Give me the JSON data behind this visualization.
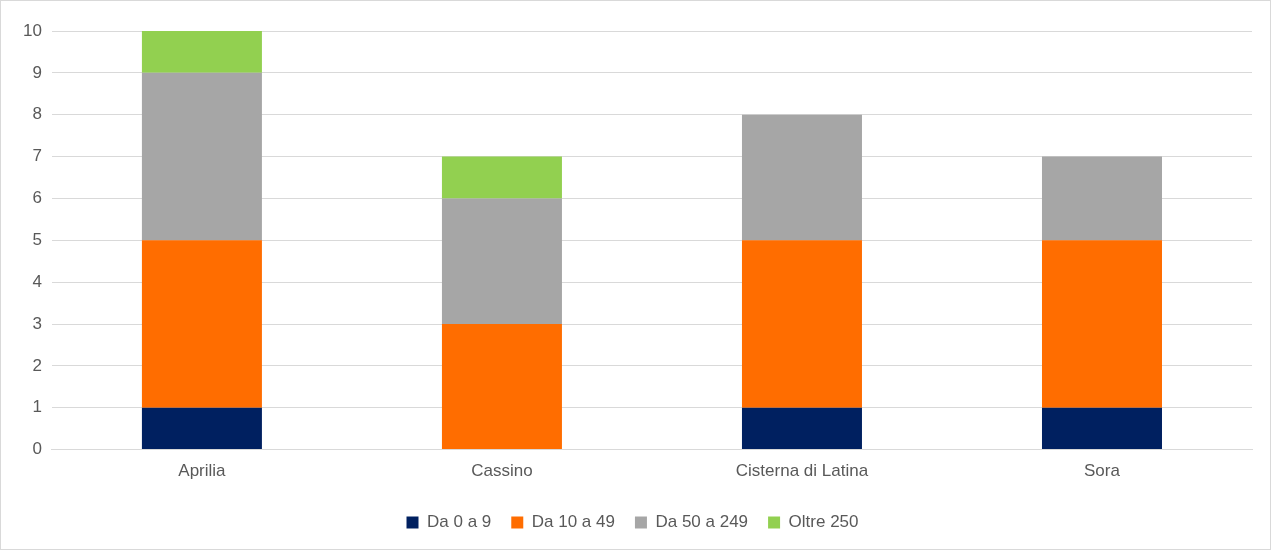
{
  "chart_data": {
    "type": "bar",
    "stacked": true,
    "categories": [
      "Aprilia",
      "Cassino",
      "Cisterna di Latina",
      "Sora"
    ],
    "series": [
      {
        "name": "Da 0 a 9",
        "color": "#002060",
        "values": [
          1,
          0,
          1,
          1
        ]
      },
      {
        "name": "Da 10 a 49",
        "color": "#ff6d00",
        "values": [
          4,
          3,
          4,
          4
        ]
      },
      {
        "name": "Da 50 a 249",
        "color": "#a6a6a6",
        "values": [
          4,
          3,
          3,
          2
        ]
      },
      {
        "name": "Oltre 250",
        "color": "#92d050",
        "values": [
          1,
          1,
          0,
          0
        ]
      }
    ],
    "ylim": [
      0,
      10
    ],
    "yticks": [
      0,
      1,
      2,
      3,
      4,
      5,
      6,
      7,
      8,
      9,
      10
    ],
    "grid": "y",
    "legend": "bottom"
  }
}
